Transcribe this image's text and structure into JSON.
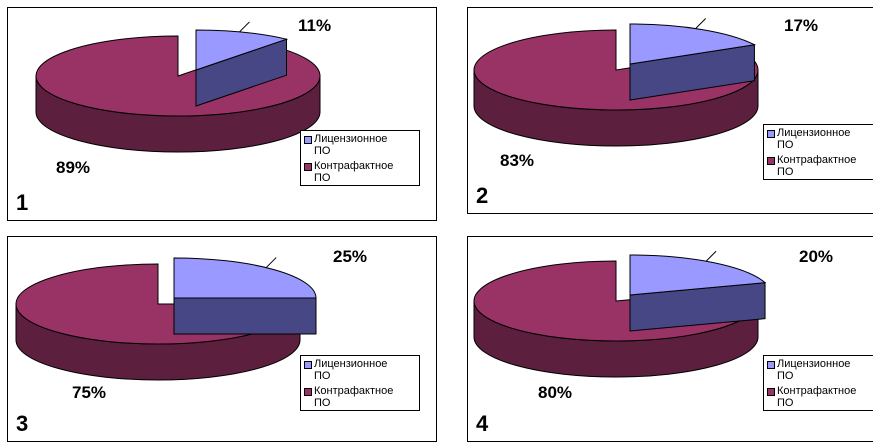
{
  "colors": {
    "licensed_top": "#9999ff",
    "licensed_side": "#474785",
    "counterfeit_top": "#993366",
    "counterfeit_side": "#5c1f3d",
    "outline": "#000000"
  },
  "legend": {
    "licensed": "Лицензионное\nПО",
    "counterfeit": "Контрафактное\nПО"
  },
  "chart_data": [
    {
      "type": "pie",
      "number": "1",
      "categories": [
        "Лицензионное ПО",
        "Контрафактное ПО"
      ],
      "values": [
        11,
        89
      ],
      "labels": [
        "11%",
        "89%"
      ]
    },
    {
      "type": "pie",
      "number": "2",
      "categories": [
        "Лицензионное ПО",
        "Контрафактное ПО"
      ],
      "values": [
        17,
        83
      ],
      "labels": [
        "17%",
        "83%"
      ]
    },
    {
      "type": "pie",
      "number": "3",
      "categories": [
        "Лицензионное ПО",
        "Контрафактное ПО"
      ],
      "values": [
        25,
        75
      ],
      "labels": [
        "25%",
        "75%"
      ]
    },
    {
      "type": "pie",
      "number": "4",
      "categories": [
        "Лицензионное ПО",
        "Контрафактное ПО"
      ],
      "values": [
        20,
        80
      ],
      "labels": [
        "20%",
        "80%"
      ]
    }
  ]
}
